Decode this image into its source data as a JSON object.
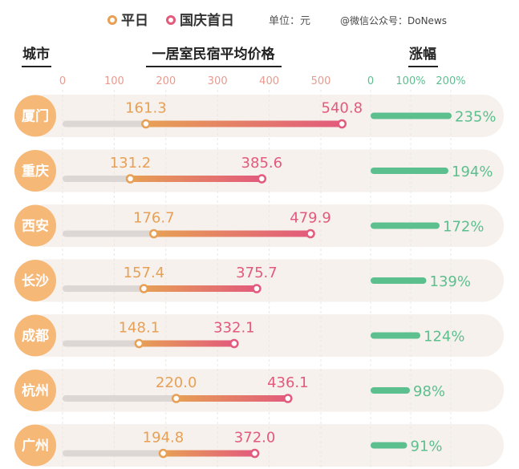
{
  "legend": {
    "weekday_label": "平日",
    "holiday_label": "国庆首日",
    "unit": "单位：元",
    "watermark": "@微信公众号：DoNews"
  },
  "headers": {
    "city": "城市",
    "price": "一居室民宿平均价格",
    "increase": "涨幅"
  },
  "colors": {
    "weekday": "#e7a055",
    "holiday": "#e25a7c",
    "increase": "#5cbf8e",
    "city_badge": "#f6b877",
    "row_bg": "#f6f1ed"
  },
  "chart_data": {
    "type": "bar",
    "price_axis": {
      "ticks": [
        "0",
        "100",
        "200",
        "300",
        "400",
        "500"
      ],
      "range": [
        0,
        500
      ]
    },
    "increase_axis": {
      "ticks": [
        "0",
        "100%",
        "200%"
      ],
      "range": [
        0,
        200
      ]
    },
    "categories": [
      "厦门",
      "重庆",
      "西安",
      "长沙",
      "成都",
      "杭州",
      "广州"
    ],
    "series": [
      {
        "name": "平日",
        "values": [
          161.3,
          131.2,
          176.7,
          157.4,
          148.1,
          220.0,
          194.8
        ],
        "labels": [
          "161.3",
          "131.2",
          "176.7",
          "157.4",
          "148.1",
          "220.0",
          "194.8"
        ]
      },
      {
        "name": "国庆首日",
        "values": [
          540.8,
          385.6,
          479.9,
          375.7,
          332.1,
          436.1,
          372.0
        ],
        "labels": [
          "540.8",
          "385.6",
          "479.9",
          "375.7",
          "332.1",
          "436.1",
          "372.0"
        ]
      }
    ],
    "increase": {
      "values": [
        235,
        194,
        172,
        139,
        124,
        98,
        91
      ],
      "labels": [
        "235%",
        "194%",
        "172%",
        "139%",
        "124%",
        "98%",
        "91%"
      ]
    }
  }
}
